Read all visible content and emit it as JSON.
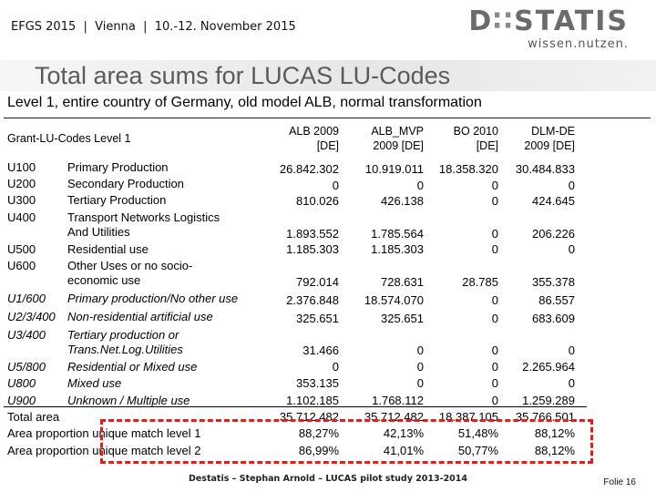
{
  "header": {
    "conference": "EFGS 2015  |  Vienna  |  10.-12. November 2015",
    "logo_main_a": "D",
    "logo_main_b": "STATIS",
    "logo_sub": "wissen.nutzen."
  },
  "title": "Total area sums for LUCAS LU-Codes",
  "subtitle": "Level 1, entire country of Germany, old model ALB, normal transformation",
  "table": {
    "row_header": "Grant-LU-Codes Level 1",
    "columns": [
      {
        "l1": "ALB 2009",
        "l2": "[DE]"
      },
      {
        "l1": "ALB_MVP",
        "l2": "2009 [DE]"
      },
      {
        "l1": "BO 2010",
        "l2": "[DE]"
      },
      {
        "l1": "DLM-DE",
        "l2": "2009 [DE]"
      }
    ],
    "rows": [
      {
        "code": "U100",
        "desc": "Primary Production",
        "v": [
          "26.842.302",
          "10.919.011",
          "18.358.320",
          "30.484.833"
        ]
      },
      {
        "code": "U200",
        "desc": "Secondary Production",
        "v": [
          "0",
          "0",
          "0",
          "0"
        ]
      },
      {
        "code": "U300",
        "desc": "Tertiary Production",
        "v": [
          "810.026",
          "426.138",
          "0",
          "424.645"
        ]
      },
      {
        "code": "U400",
        "desc": "Transport Networks Logistics",
        "desc2": "And Utilities",
        "v": [
          "1.893.552",
          "1.785.564",
          "0",
          "206.226"
        ]
      },
      {
        "code": "U500",
        "desc": "Residential use",
        "v": [
          "1.185.303",
          "1.185.303",
          "0",
          "0"
        ]
      },
      {
        "code": "U600",
        "desc": "Other Uses or no socio-",
        "desc2": "economic use",
        "v": [
          "792.014",
          "728.631",
          "28.785",
          "355.378"
        ]
      },
      {
        "code": "U1/600",
        "desc": "Primary production/No other use",
        "v": [
          "2.376.848",
          "18.574.070",
          "0",
          "86.557"
        ]
      },
      {
        "code": "U2/3/400",
        "desc": "Non-residential artificial use",
        "v": [
          "325.651",
          "325.651",
          "0",
          "683.609"
        ]
      },
      {
        "code": "U3/400",
        "desc": "Tertiary production or",
        "desc2": "Trans.Net.Log.Utilities",
        "v": [
          "31.466",
          "0",
          "0",
          "0"
        ]
      },
      {
        "code": "U5/800",
        "desc": "Residential or Mixed use",
        "v": [
          "0",
          "0",
          "0",
          "2.265.964"
        ]
      },
      {
        "code": "U800",
        "desc": "Mixed use",
        "v": [
          "353.135",
          "0",
          "0",
          "0"
        ]
      },
      {
        "code": "U900",
        "desc": "Unknown / Multiple use",
        "v": [
          "1.102.185",
          "1.768.112",
          "0",
          "1.259.289"
        ]
      }
    ],
    "total": {
      "label": "Total area",
      "v": [
        "35.712.482",
        "35.712.482",
        "18.387.105",
        "35.766.501"
      ]
    },
    "prop1": {
      "label": "Area proportion unique match level 1",
      "v": [
        "88,27%",
        "42,13%",
        "51,48%",
        "88,12%"
      ]
    },
    "prop2": {
      "label": "Area proportion unique match level 2",
      "v": [
        "86,99%",
        "41,01%",
        "50,77%",
        "88,12%"
      ]
    }
  },
  "footer": "Destatis – Stephan Arnold – LUCAS pilot study 2013-2014",
  "folie": "Folie 16",
  "colors": {
    "highlight_border": "#e0201a",
    "title": "#5a5a5a"
  }
}
